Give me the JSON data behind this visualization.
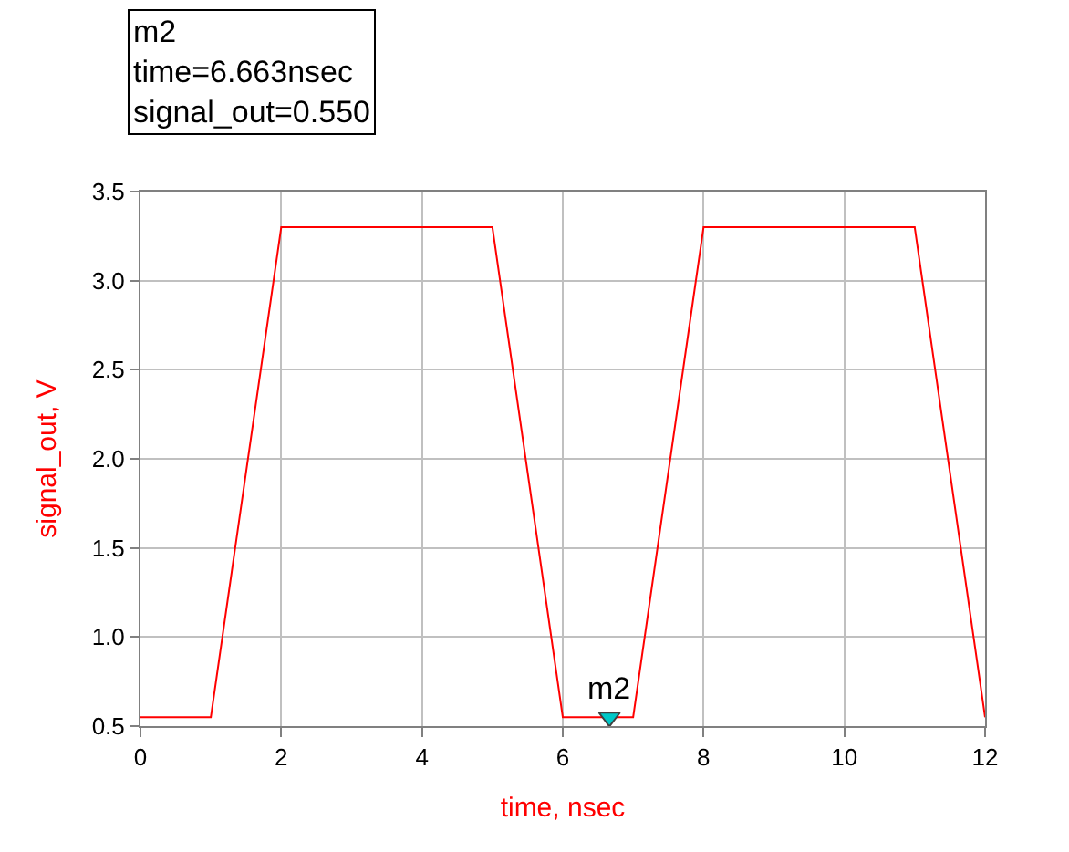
{
  "chart_data": {
    "type": "line",
    "xlabel": "time, nsec",
    "ylabel": "signal_out, V",
    "x": [
      0,
      1,
      2,
      5,
      6,
      7,
      8,
      11,
      12
    ],
    "series": [
      {
        "color": "#ff0000",
        "values": [
          0.55,
          0.55,
          3.3,
          3.3,
          0.55,
          0.55,
          3.3,
          3.3,
          0.55
        ]
      },
      {
        "type": "scatter",
        "color": "#00c8c8",
        "marker": "triangle",
        "x": [
          6.663
        ],
        "values": [
          0.55
        ]
      }
    ],
    "annotations": [
      "m2\ntime=6.663nsec\nsignal_out=0.550",
      {
        "text": "m2",
        "x": 6.663,
        "y": 0.55
      }
    ],
    "xlim": [
      0,
      12
    ],
    "xticks": [
      0,
      2,
      4,
      6,
      8,
      10,
      12
    ],
    "ylim": [
      0.5,
      3.5
    ],
    "yticks": [
      0.5,
      {
        "value": 1,
        "label": "1.0"
      },
      1.5,
      {
        "value": 2,
        "label": "2.0"
      },
      2.5,
      {
        "value": 3,
        "label": "3.0"
      },
      3.5
    ],
    "grid": true
  }
}
